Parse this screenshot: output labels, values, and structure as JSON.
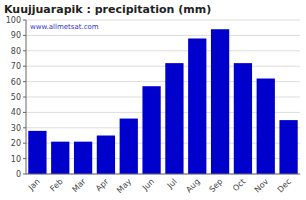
{
  "chart_data": {
    "type": "bar",
    "title": "Kuujjuarapik : precipitation (mm)",
    "categories": [
      "Jan",
      "Feb",
      "Mar",
      "Apr",
      "May",
      "Jun",
      "Jul",
      "Aug",
      "Sep",
      "Oct",
      "Nov",
      "Dec"
    ],
    "values": [
      28,
      21,
      21,
      25,
      36,
      57,
      72,
      88,
      94,
      72,
      62,
      35
    ],
    "color": "#0000CC",
    "ylim": [
      0,
      100
    ],
    "yticks": [
      0,
      10,
      20,
      30,
      40,
      50,
      60,
      70,
      80,
      90,
      100
    ],
    "grid": true,
    "annotations": [
      "www.allmetsat.com"
    ]
  }
}
